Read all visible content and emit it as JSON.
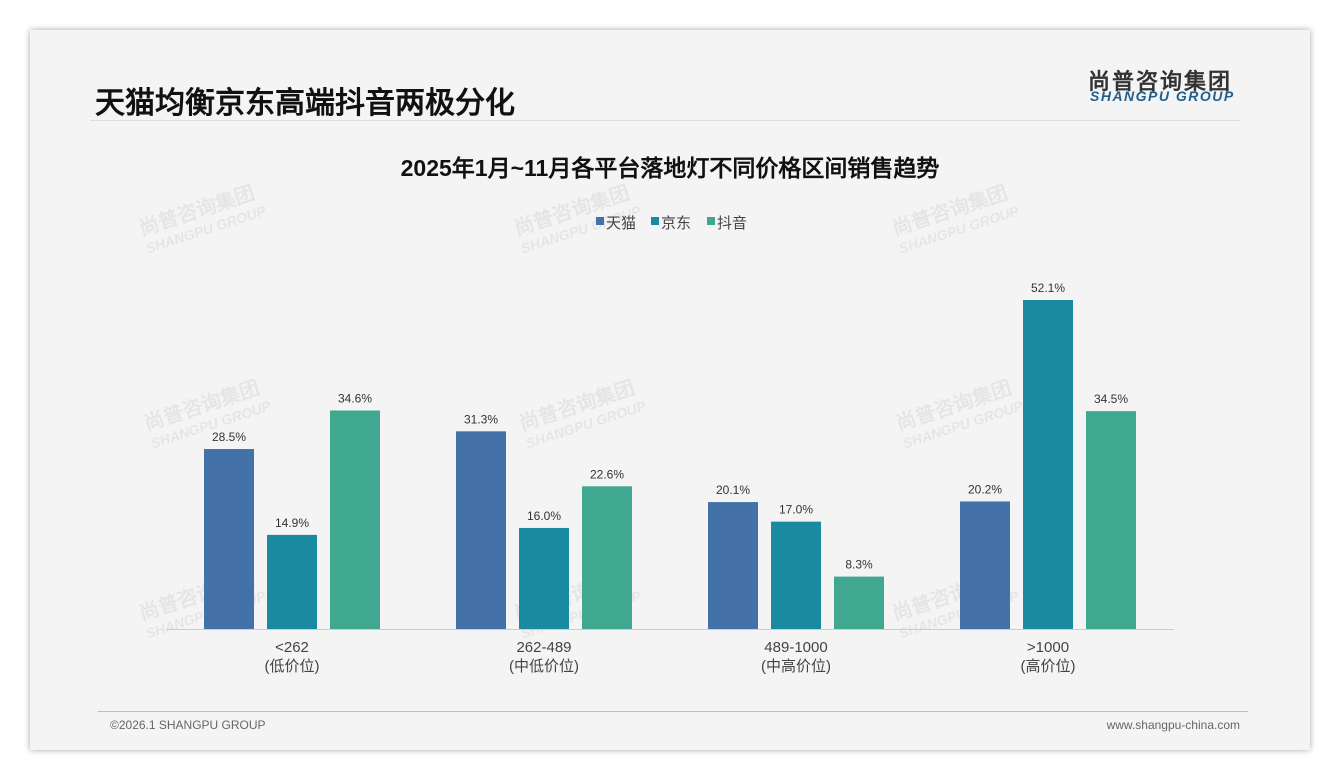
{
  "header": {
    "title": "天猫均衡京东高端抖音两极分化",
    "logo_cn": "尚普咨询集团",
    "logo_en": "SHANGPU GROUP"
  },
  "footer": {
    "copyright": "©2026.1 SHANGPU GROUP",
    "website": "www.shangpu-china.com"
  },
  "chart_data": {
    "type": "bar",
    "title": "2025年1月~11月各平台落地灯不同价格区间销售趋势",
    "categories": [
      "<262",
      "262-489",
      "489-1000",
      ">1000"
    ],
    "category_sublabels": [
      "(低价位)",
      "(中低价位)",
      "(中高价位)",
      "(高价位)"
    ],
    "series": [
      {
        "name": "天猫",
        "color": "#4472a8",
        "values": [
          28.5,
          31.3,
          20.1,
          20.2
        ]
      },
      {
        "name": "京东",
        "color": "#1a8aa1",
        "values": [
          14.9,
          16.0,
          17.0,
          52.1
        ]
      },
      {
        "name": "抖音",
        "color": "#40a891",
        "values": [
          34.6,
          22.6,
          8.3,
          34.5
        ]
      }
    ],
    "unit": "%",
    "legend": "top-center",
    "ylim": [
      0,
      55
    ],
    "grid": false
  }
}
